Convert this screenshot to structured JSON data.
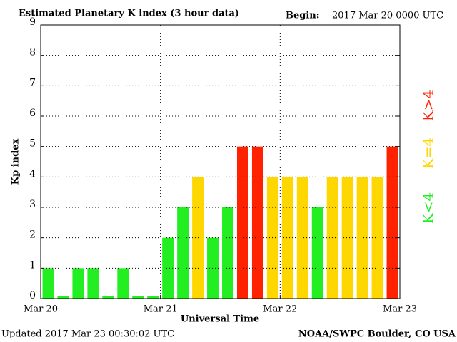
{
  "chart_data": {
    "type": "bar",
    "title": "Estimated Planetary K index (3 hour data)",
    "begin_label": "Begin:",
    "begin_value": "2017 Mar 20 0000 UTC",
    "ylabel": "Kp index",
    "xlabel": "Universal Time",
    "updated": "Updated 2017 Mar 23 00:30:02 UTC",
    "credit": "NOAA/SWPC Boulder, CO USA",
    "x": [
      0,
      3,
      6,
      9,
      12,
      15,
      18,
      21,
      24,
      27,
      30,
      33,
      36,
      39,
      42,
      45,
      48,
      51,
      54,
      57,
      60,
      63,
      66,
      69
    ],
    "series": [
      {
        "name": "Kp",
        "values": [
          1,
          0,
          1,
          1,
          0,
          1,
          0,
          0,
          2,
          3,
          4,
          2,
          3,
          5,
          5,
          4,
          4,
          4,
          3,
          4,
          4,
          4,
          4,
          5
        ],
        "colors": [
          "#22ee22",
          "#22ee22",
          "#22ee22",
          "#22ee22",
          "#22ee22",
          "#22ee22",
          "#22ee22",
          "#22ee22",
          "#22ee22",
          "#22ee22",
          "#ffd700",
          "#22ee22",
          "#22ee22",
          "#ff2200",
          "#ff2200",
          "#ffd700",
          "#ffd700",
          "#ffd700",
          "#22ee22",
          "#ffd700",
          "#ffd700",
          "#ffd700",
          "#ffd700",
          "#ff2200"
        ]
      }
    ],
    "legend": [
      {
        "label": "K>4",
        "color": "#ff2200"
      },
      {
        "label": "K=4",
        "color": "#ffd700"
      },
      {
        "label": "K<4",
        "color": "#22ee22"
      }
    ],
    "xlim": [
      0,
      72
    ],
    "xticks": [
      {
        "value": 0,
        "label": "Mar 20"
      },
      {
        "value": 24,
        "label": "Mar 21"
      },
      {
        "value": 48,
        "label": "Mar 22"
      },
      {
        "value": 72,
        "label": "Mar 23"
      }
    ],
    "ylim": [
      0,
      9
    ],
    "yticks": [
      0,
      1,
      2,
      3,
      4,
      5,
      6,
      7,
      8,
      9
    ],
    "grid": true
  }
}
